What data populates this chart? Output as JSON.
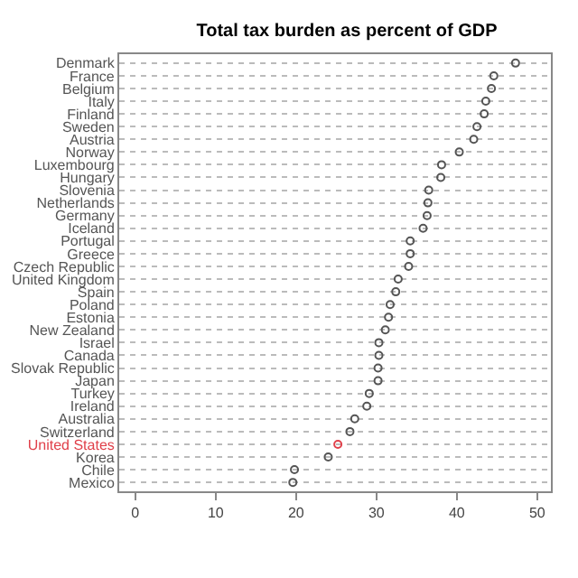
{
  "chart_data": {
    "type": "scatter",
    "orientation": "horizontal",
    "title": "Total tax burden as percent of GDP",
    "categories": [
      "Denmark",
      "France",
      "Belgium",
      "Italy",
      "Finland",
      "Sweden",
      "Austria",
      "Norway",
      "Luxembourg",
      "Hungary",
      "Slovenia",
      "Netherlands",
      "Germany",
      "Iceland",
      "Portugal",
      "Greece",
      "Czech Republic",
      "United Kingdom",
      "Spain",
      "Poland",
      "Estonia",
      "New Zealand",
      "Israel",
      "Canada",
      "Slovak Republic",
      "Japan",
      "Turkey",
      "Ireland",
      "Australia",
      "Switzerland",
      "United States",
      "Korea",
      "Chile",
      "Mexico"
    ],
    "values": [
      47.3,
      44.6,
      44.3,
      43.6,
      43.4,
      42.5,
      42.1,
      40.3,
      38.1,
      38.0,
      36.5,
      36.4,
      36.3,
      35.8,
      34.2,
      34.2,
      34.0,
      32.7,
      32.4,
      31.7,
      31.5,
      31.1,
      30.3,
      30.3,
      30.2,
      30.2,
      29.1,
      28.8,
      27.3,
      26.7,
      25.2,
      24.0,
      19.8,
      19.6
    ],
    "colors": [
      "#555555",
      "#555555",
      "#555555",
      "#555555",
      "#555555",
      "#555555",
      "#555555",
      "#555555",
      "#555555",
      "#555555",
      "#555555",
      "#555555",
      "#555555",
      "#555555",
      "#555555",
      "#555555",
      "#555555",
      "#555555",
      "#555555",
      "#555555",
      "#555555",
      "#555555",
      "#555555",
      "#555555",
      "#555555",
      "#555555",
      "#555555",
      "#555555",
      "#555555",
      "#555555",
      "#e0404a",
      "#555555",
      "#555555",
      "#555555"
    ],
    "xlim": [
      -2,
      51.7
    ],
    "xticks": [
      0,
      10,
      20,
      30,
      40,
      50
    ],
    "grid": "y",
    "marker": "circle"
  }
}
